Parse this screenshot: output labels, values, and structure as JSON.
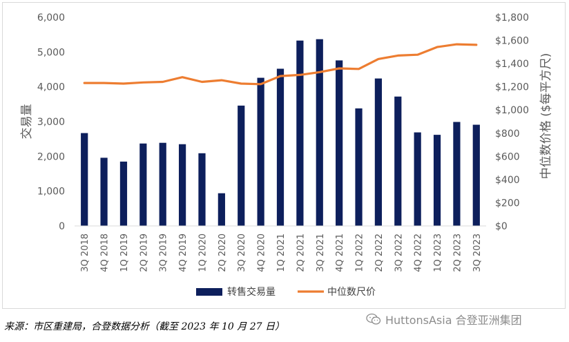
{
  "chart_data": {
    "type": "bar+line",
    "categories": [
      "3Q 2018",
      "4Q 2018",
      "1Q 2019",
      "2Q 2019",
      "3Q 2019",
      "4Q 2019",
      "1Q 2020",
      "2Q 2020",
      "3Q 2020",
      "4Q 2020",
      "1Q 2021",
      "2Q 2021",
      "3Q 2021",
      "4Q 2021",
      "1Q 2022",
      "2Q 2022",
      "3Q 2022",
      "4Q 2022",
      "1Q 2023",
      "2Q 2023",
      "3Q 2023"
    ],
    "series": [
      {
        "name": "转售交易量",
        "type": "bar",
        "axis": "left",
        "color": "#0d1f5c",
        "values": [
          2670,
          1960,
          1850,
          2370,
          2390,
          2350,
          2090,
          940,
          3460,
          4260,
          4520,
          5330,
          5370,
          4760,
          3380,
          4240,
          3720,
          2690,
          2620,
          2990,
          2910
        ]
      },
      {
        "name": "中位数尺价",
        "type": "line",
        "axis": "right",
        "color": "#ed7d31",
        "values": [
          1233,
          1233,
          1228,
          1238,
          1243,
          1283,
          1243,
          1257,
          1228,
          1223,
          1293,
          1303,
          1327,
          1359,
          1354,
          1440,
          1470,
          1477,
          1543,
          1567,
          1562
        ]
      }
    ],
    "ylabel": "交易量",
    "y2label": "中位数价格 ($每平方尺)",
    "ylim": [
      0,
      6000
    ],
    "y2lim": [
      0,
      1800
    ],
    "yticks": [
      "0",
      "1,000",
      "2,000",
      "3,000",
      "4,000",
      "5,000",
      "6,000"
    ],
    "y2ticks": [
      "$0",
      "$200",
      "$400",
      "$600",
      "$800",
      "$1,000",
      "$1,200",
      "$1,400",
      "$1,600",
      "$1,800"
    ],
    "grid": false,
    "legend": "bottom-center"
  },
  "footer": {
    "source": "来源：市区重建局，合登数据分析（截至 2023 年 10 月 27 日）",
    "brand": "HuttonsAsia 合登亚洲集团"
  }
}
